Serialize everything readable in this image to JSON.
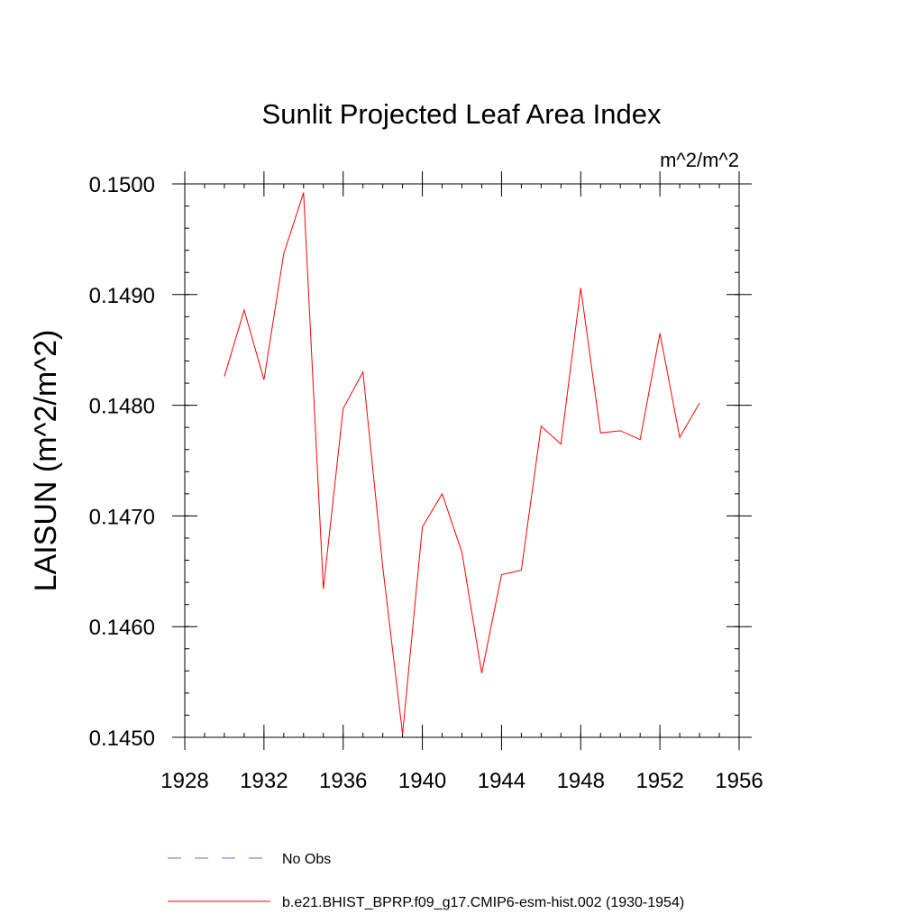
{
  "chart_data": {
    "type": "line",
    "title": "Sunlit Projected Leaf Area Index",
    "units_label": "m^2/m^2",
    "xlabel": "",
    "ylabel": "LAISUN  (m^2/m^2)",
    "xlim": [
      1928,
      1956
    ],
    "ylim": [
      0.145,
      0.15
    ],
    "x_ticks": [
      1928,
      1932,
      1936,
      1940,
      1944,
      1948,
      1952,
      1956
    ],
    "x_tick_labels": [
      "1928",
      "1932",
      "1936",
      "1940",
      "1944",
      "1948",
      "1952",
      "1956"
    ],
    "y_ticks": [
      0.145,
      0.146,
      0.147,
      0.148,
      0.149,
      0.15
    ],
    "y_tick_labels": [
      "0.1450",
      "0.1460",
      "0.1470",
      "0.1480",
      "0.1490",
      "0.1500"
    ],
    "x_minor_step": 1,
    "y_minor_step": 0.0002,
    "grid": false,
    "legend_position": "bottom",
    "series": [
      {
        "name": "No Obs",
        "color": "#6a6acd",
        "style": "dashed",
        "x": [],
        "values": []
      },
      {
        "name": "b.e21.BHIST_BPRP.f09_g17.CMIP6-esm-hist.002 (1930-1954)",
        "color": "#ff0000",
        "style": "solid",
        "x": [
          1930,
          1931,
          1932,
          1933,
          1934,
          1935,
          1936,
          1937,
          1938,
          1939,
          1940,
          1941,
          1942,
          1943,
          1944,
          1945,
          1946,
          1947,
          1948,
          1949,
          1950,
          1951,
          1952,
          1953,
          1954
        ],
        "values": [
          0.14826,
          0.14886,
          0.14823,
          0.14937,
          0.14992,
          0.14634,
          0.14797,
          0.1483,
          0.14654,
          0.14503,
          0.1469,
          0.1472,
          0.14667,
          0.14558,
          0.14647,
          0.14651,
          0.14781,
          0.14765,
          0.14906,
          0.14775,
          0.14777,
          0.14769,
          0.14865,
          0.14771,
          0.14802
        ]
      }
    ]
  }
}
